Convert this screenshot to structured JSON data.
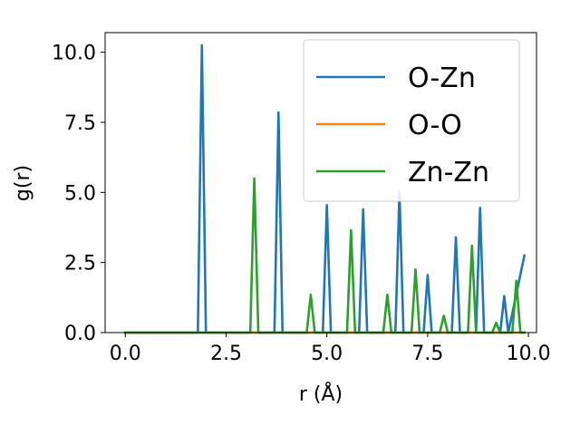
{
  "chart_data": {
    "type": "line",
    "title": "",
    "xlabel": "r (Å)",
    "ylabel": "g(r)",
    "xlim": [
      -0.5,
      10.2
    ],
    "ylim": [
      0,
      10.7
    ],
    "xticks": [
      "0.0",
      "2.5",
      "5.0",
      "7.5",
      "10.0"
    ],
    "xtick_values": [
      0,
      2.5,
      5,
      7.5,
      10
    ],
    "yticks": [
      "0.0",
      "2.5",
      "5.0",
      "7.5",
      "10.0"
    ],
    "ytick_values": [
      0,
      2.5,
      5,
      7.5,
      10
    ],
    "grid": false,
    "legend_position": "upper right",
    "series": [
      {
        "name": "O-Zn",
        "color": "#1f77b4",
        "x": [
          0,
          1.8,
          1.9,
          2.0,
          3.7,
          3.8,
          3.9,
          4.9,
          5.0,
          5.1,
          5.8,
          5.9,
          6.0,
          6.7,
          6.8,
          6.9,
          7.4,
          7.5,
          7.6,
          8.1,
          8.2,
          8.3,
          8.7,
          8.8,
          8.9,
          9.3,
          9.4,
          9.5,
          9.9
        ],
        "y": [
          0,
          0,
          10.25,
          0,
          0,
          7.85,
          0,
          0,
          4.55,
          0,
          0,
          4.4,
          0,
          0,
          5.0,
          0,
          0,
          2.05,
          0,
          0,
          3.4,
          0,
          0,
          4.45,
          0,
          0,
          1.3,
          0,
          2.75
        ]
      },
      {
        "name": "O-O",
        "color": "#ff7f0e",
        "x": [
          0,
          9.9
        ],
        "y": [
          0,
          0
        ]
      },
      {
        "name": "Zn-Zn",
        "color": "#2ca02c",
        "x": [
          0,
          3.1,
          3.2,
          3.3,
          4.5,
          4.6,
          4.7,
          5.5,
          5.6,
          5.7,
          6.4,
          6.5,
          6.6,
          7.1,
          7.2,
          7.3,
          7.8,
          7.9,
          8.0,
          8.5,
          8.6,
          8.7,
          9.1,
          9.2,
          9.3,
          9.6,
          9.7,
          9.8,
          9.9
        ],
        "y": [
          0,
          0,
          5.5,
          0,
          0,
          1.35,
          0,
          0,
          3.65,
          0,
          0,
          1.35,
          0,
          0,
          2.25,
          0,
          0,
          0.6,
          0,
          0,
          3.1,
          0,
          0,
          0.35,
          0,
          0,
          1.85,
          0,
          0
        ]
      }
    ]
  }
}
